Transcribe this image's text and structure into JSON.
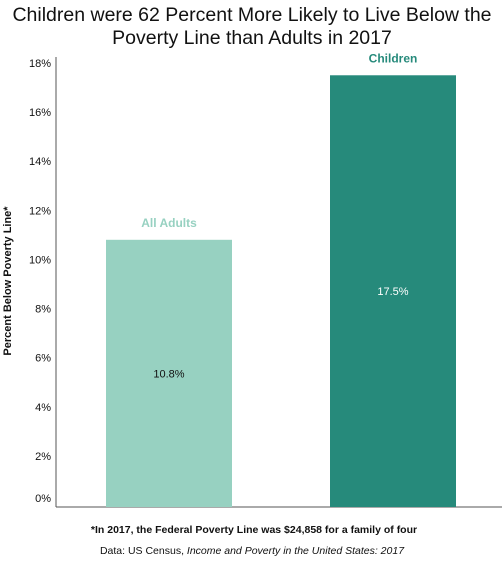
{
  "title_line1": "Children were 62 Percent More Likely to Live Below the",
  "title_line2": "Poverty Line than Adults in 2017",
  "footnote": "*In 2017, the Federal Poverty Line was $24,858 for a family of four",
  "source_prefix": "Data: US Census, ",
  "source_title": "Income and Poverty in the United States: 2017",
  "colors": {
    "adults": "#97d1c1",
    "children": "#268a7b",
    "adults_label": "#97d1c1",
    "children_label": "#268a7b"
  },
  "chart_data": {
    "type": "bar",
    "title": "Children were 62 Percent More Likely to Live Below the Poverty Line than Adults in 2017",
    "ylabel": "Percent Below Poverty Line*",
    "xlabel": "",
    "ylim": [
      0,
      18
    ],
    "yticks": [
      0,
      2,
      4,
      6,
      8,
      10,
      12,
      14,
      16,
      18
    ],
    "ytick_labels": [
      "0%",
      "2%",
      "4%",
      "6%",
      "8%",
      "10%",
      "12%",
      "14%",
      "16%",
      "18%"
    ],
    "categories": [
      "All Adults",
      "Children"
    ],
    "values": [
      10.8,
      17.5
    ],
    "data_labels": [
      "10.8%",
      "17.5%"
    ],
    "grid": false
  }
}
